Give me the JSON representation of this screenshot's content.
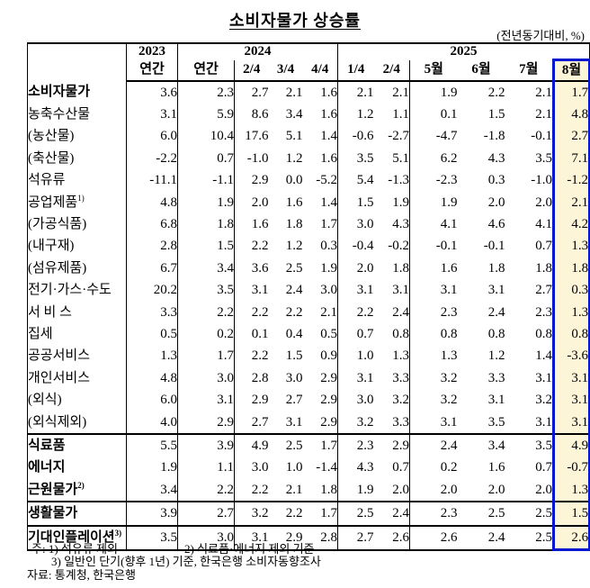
{
  "title": "소비자물가 상승률",
  "unit_note": "(전년동기대비, %)",
  "colors": {
    "highlight_bg": "#fdf5d8",
    "highlight_border": "#0016d0"
  },
  "table": {
    "col_groups": [
      {
        "label": "2023",
        "span": 1
      },
      {
        "label": "2024",
        "span": 4
      },
      {
        "label": "2025",
        "span": 6
      }
    ],
    "sub_headers": [
      "연간",
      "연간",
      "2/4",
      "3/4",
      "4/4",
      "1/4",
      "2/4",
      "5월",
      "6월",
      "7월",
      "8월"
    ],
    "highlight_column": "8월",
    "rows": [
      {
        "label": "소비자물가",
        "sup": "",
        "indent": 0,
        "bold": true,
        "section_top": false,
        "values": [
          "3.6",
          "2.3",
          "2.7",
          "2.1",
          "1.6",
          "2.1",
          "2.1",
          "1.9",
          "2.2",
          "2.1",
          "1.7"
        ]
      },
      {
        "label": "농축수산물",
        "sup": "",
        "indent": 1,
        "bold": false,
        "section_top": false,
        "values": [
          "3.1",
          "5.9",
          "8.6",
          "3.4",
          "1.6",
          "1.2",
          "1.1",
          "0.1",
          "1.5",
          "2.1",
          "4.8"
        ]
      },
      {
        "label": "(농산물)",
        "sup": "",
        "indent": 2,
        "bold": false,
        "section_top": false,
        "values": [
          "6.0",
          "10.4",
          "17.6",
          "5.1",
          "1.4",
          "-0.6",
          "-2.7",
          "-4.7",
          "-1.8",
          "-0.1",
          "2.7"
        ]
      },
      {
        "label": "(축산물)",
        "sup": "",
        "indent": 2,
        "bold": false,
        "section_top": false,
        "values": [
          "-2.2",
          "0.7",
          "-1.0",
          "1.2",
          "1.6",
          "3.5",
          "5.1",
          "6.2",
          "4.3",
          "3.5",
          "7.1"
        ]
      },
      {
        "label": "석유류",
        "sup": "",
        "indent": 1,
        "bold": false,
        "section_top": false,
        "values": [
          "-11.1",
          "-1.1",
          "2.9",
          "0.0",
          "-5.2",
          "5.4",
          "-1.3",
          "-2.3",
          "0.3",
          "-1.0",
          "-1.2"
        ]
      },
      {
        "label": "공업제품",
        "sup": "1)",
        "indent": 1,
        "bold": false,
        "section_top": false,
        "values": [
          "4.8",
          "1.9",
          "2.0",
          "1.6",
          "1.4",
          "1.5",
          "1.9",
          "1.9",
          "2.0",
          "2.0",
          "2.1"
        ]
      },
      {
        "label": "(가공식품)",
        "sup": "",
        "indent": 2,
        "bold": false,
        "section_top": false,
        "values": [
          "6.8",
          "1.8",
          "1.6",
          "1.8",
          "1.7",
          "3.0",
          "4.3",
          "4.1",
          "4.6",
          "4.1",
          "4.2"
        ]
      },
      {
        "label": "(내구재)",
        "sup": "",
        "indent": 2,
        "bold": false,
        "section_top": false,
        "values": [
          "2.8",
          "1.5",
          "2.2",
          "1.2",
          "0.3",
          "-0.4",
          "-0.2",
          "-0.1",
          "-0.1",
          "0.7",
          "1.3"
        ]
      },
      {
        "label": "(섬유제품)",
        "sup": "",
        "indent": 2,
        "bold": false,
        "section_top": false,
        "values": [
          "6.7",
          "3.4",
          "3.6",
          "2.5",
          "1.9",
          "2.0",
          "1.8",
          "1.6",
          "1.8",
          "1.8",
          "1.8"
        ]
      },
      {
        "label": "전기·가스·수도",
        "sup": "",
        "indent": 1,
        "bold": false,
        "section_top": false,
        "values": [
          "20.2",
          "3.5",
          "3.1",
          "2.4",
          "3.0",
          "3.1",
          "3.1",
          "3.1",
          "3.1",
          "2.7",
          "0.3"
        ]
      },
      {
        "label": "서 비 스",
        "sup": "",
        "indent": 1,
        "bold": false,
        "section_top": false,
        "values": [
          "3.3",
          "2.2",
          "2.2",
          "2.2",
          "2.1",
          "2.2",
          "2.4",
          "2.3",
          "2.4",
          "2.3",
          "1.3"
        ]
      },
      {
        "label": "집세",
        "sup": "",
        "indent": 2,
        "bold": false,
        "section_top": false,
        "values": [
          "0.5",
          "0.2",
          "0.1",
          "0.4",
          "0.5",
          "0.7",
          "0.8",
          "0.8",
          "0.8",
          "0.8",
          "0.8"
        ]
      },
      {
        "label": "공공서비스",
        "sup": "",
        "indent": 2,
        "bold": false,
        "section_top": false,
        "values": [
          "1.3",
          "1.7",
          "2.2",
          "1.5",
          "0.9",
          "1.0",
          "1.3",
          "1.3",
          "1.2",
          "1.4",
          "-3.6"
        ]
      },
      {
        "label": "개인서비스",
        "sup": "",
        "indent": 2,
        "bold": false,
        "section_top": false,
        "values": [
          "4.8",
          "3.0",
          "2.8",
          "3.0",
          "2.9",
          "3.1",
          "3.3",
          "3.2",
          "3.3",
          "3.1",
          "3.1"
        ]
      },
      {
        "label": "(외식)",
        "sup": "",
        "indent": 3,
        "bold": false,
        "section_top": false,
        "values": [
          "6.0",
          "3.1",
          "2.9",
          "2.7",
          "2.9",
          "3.0",
          "3.2",
          "3.2",
          "3.1",
          "3.2",
          "3.1"
        ]
      },
      {
        "label": "(외식제외)",
        "sup": "",
        "indent": 3,
        "bold": false,
        "section_top": false,
        "values": [
          "4.0",
          "2.9",
          "2.7",
          "3.1",
          "2.9",
          "3.2",
          "3.3",
          "3.1",
          "3.5",
          "3.1",
          "3.1"
        ]
      },
      {
        "label": "식료품",
        "sup": "",
        "indent": 0,
        "bold": true,
        "section_top": true,
        "values": [
          "5.5",
          "3.9",
          "4.9",
          "2.5",
          "1.7",
          "2.3",
          "2.9",
          "2.4",
          "3.4",
          "3.5",
          "4.9"
        ]
      },
      {
        "label": "에너지",
        "sup": "",
        "indent": 0,
        "bold": true,
        "section_top": false,
        "values": [
          "1.9",
          "1.1",
          "3.0",
          "1.0",
          "-1.4",
          "4.3",
          "0.7",
          "0.2",
          "1.6",
          "0.7",
          "-0.7"
        ]
      },
      {
        "label": "근원물가",
        "sup": "2)",
        "indent": 0,
        "bold": true,
        "section_top": false,
        "values": [
          "3.4",
          "2.2",
          "2.2",
          "2.1",
          "1.8",
          "1.9",
          "2.0",
          "2.0",
          "2.0",
          "2.0",
          "1.3"
        ]
      },
      {
        "label": "생활물가",
        "sup": "",
        "indent": 0,
        "bold": true,
        "section_top": true,
        "values": [
          "3.9",
          "2.7",
          "3.2",
          "2.2",
          "1.7",
          "2.5",
          "2.4",
          "2.3",
          "2.5",
          "2.5",
          "1.5"
        ]
      },
      {
        "label": "기대인플레이션",
        "sup": "3)",
        "indent": 0,
        "bold": true,
        "section_top": true,
        "values": [
          "3.5",
          "3.0",
          "3.1",
          "2.9",
          "2.8",
          "2.7",
          "2.6",
          "2.6",
          "2.4",
          "2.5",
          "2.6"
        ]
      }
    ]
  },
  "footnotes": {
    "line1_left": "주: 1) 석유류 제외",
    "line1_right": "2) 식료품·에너지 제외 기준",
    "line2": "3) 일반인 단기(향후 1년) 기준, 한국은행 소비자동향조사",
    "source": "자료: 통계청, 한국은행"
  }
}
